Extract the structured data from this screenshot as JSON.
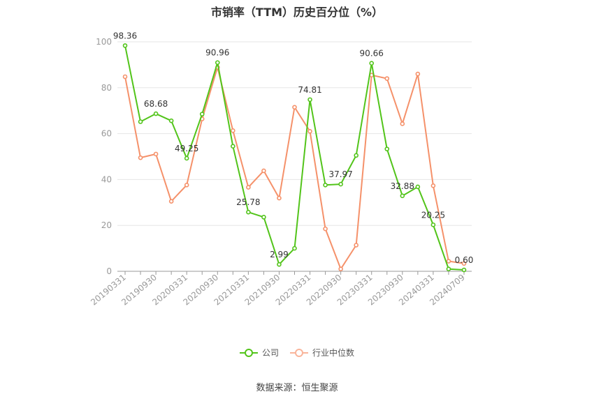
{
  "chart_data": {
    "type": "line",
    "title": "市销率（TTM）历史百分位（%）",
    "x": [
      "20190331",
      "20190630",
      "20190930",
      "20191231",
      "20200331",
      "20200630",
      "20200930",
      "20201231",
      "20210331",
      "20210630",
      "20210930",
      "20211231",
      "20220331",
      "20220630",
      "20220930",
      "20221231",
      "20230331",
      "20230630",
      "20230930",
      "20231231",
      "20240331",
      "20240630",
      "20240709"
    ],
    "x_tick_labels": [
      "20190331",
      "20190930",
      "20200331",
      "20200930",
      "20210331",
      "20210930",
      "20220331",
      "20220930",
      "20230331",
      "20230930",
      "20240331",
      "20240709"
    ],
    "y_ticks": [
      0,
      20,
      40,
      60,
      80,
      100
    ],
    "ylim": [
      0,
      100
    ],
    "grid": "horizontal",
    "legend_position": "bottom",
    "series": [
      {
        "name": "公司",
        "color": "#52c41a",
        "values": [
          98.36,
          65.2,
          68.68,
          65.6,
          49.25,
          68.5,
          90.96,
          54.5,
          25.78,
          23.6,
          2.99,
          10.0,
          74.81,
          37.6,
          37.97,
          50.5,
          90.66,
          53.3,
          32.88,
          36.8,
          20.25,
          1.0,
          0.6
        ],
        "labels": {
          "0": "98.36",
          "2": "68.68",
          "4": "49.25",
          "6": "90.96",
          "8": "25.78",
          "10": "2.99",
          "12": "74.81",
          "14": "37.97",
          "16": "90.66",
          "18": "32.88",
          "20": "20.25",
          "22": "0.60"
        }
      },
      {
        "name": "行业中位数",
        "color": "#f5916a",
        "values": [
          84.8,
          49.5,
          51.1,
          30.5,
          37.6,
          66.4,
          88.9,
          61.3,
          36.6,
          43.8,
          31.9,
          71.5,
          61.0,
          18.5,
          1.0,
          11.4,
          85.5,
          84.0,
          64.3,
          86.0,
          37.3,
          4.4,
          3.4
        ]
      }
    ]
  },
  "source": "数据来源：恒生聚源"
}
